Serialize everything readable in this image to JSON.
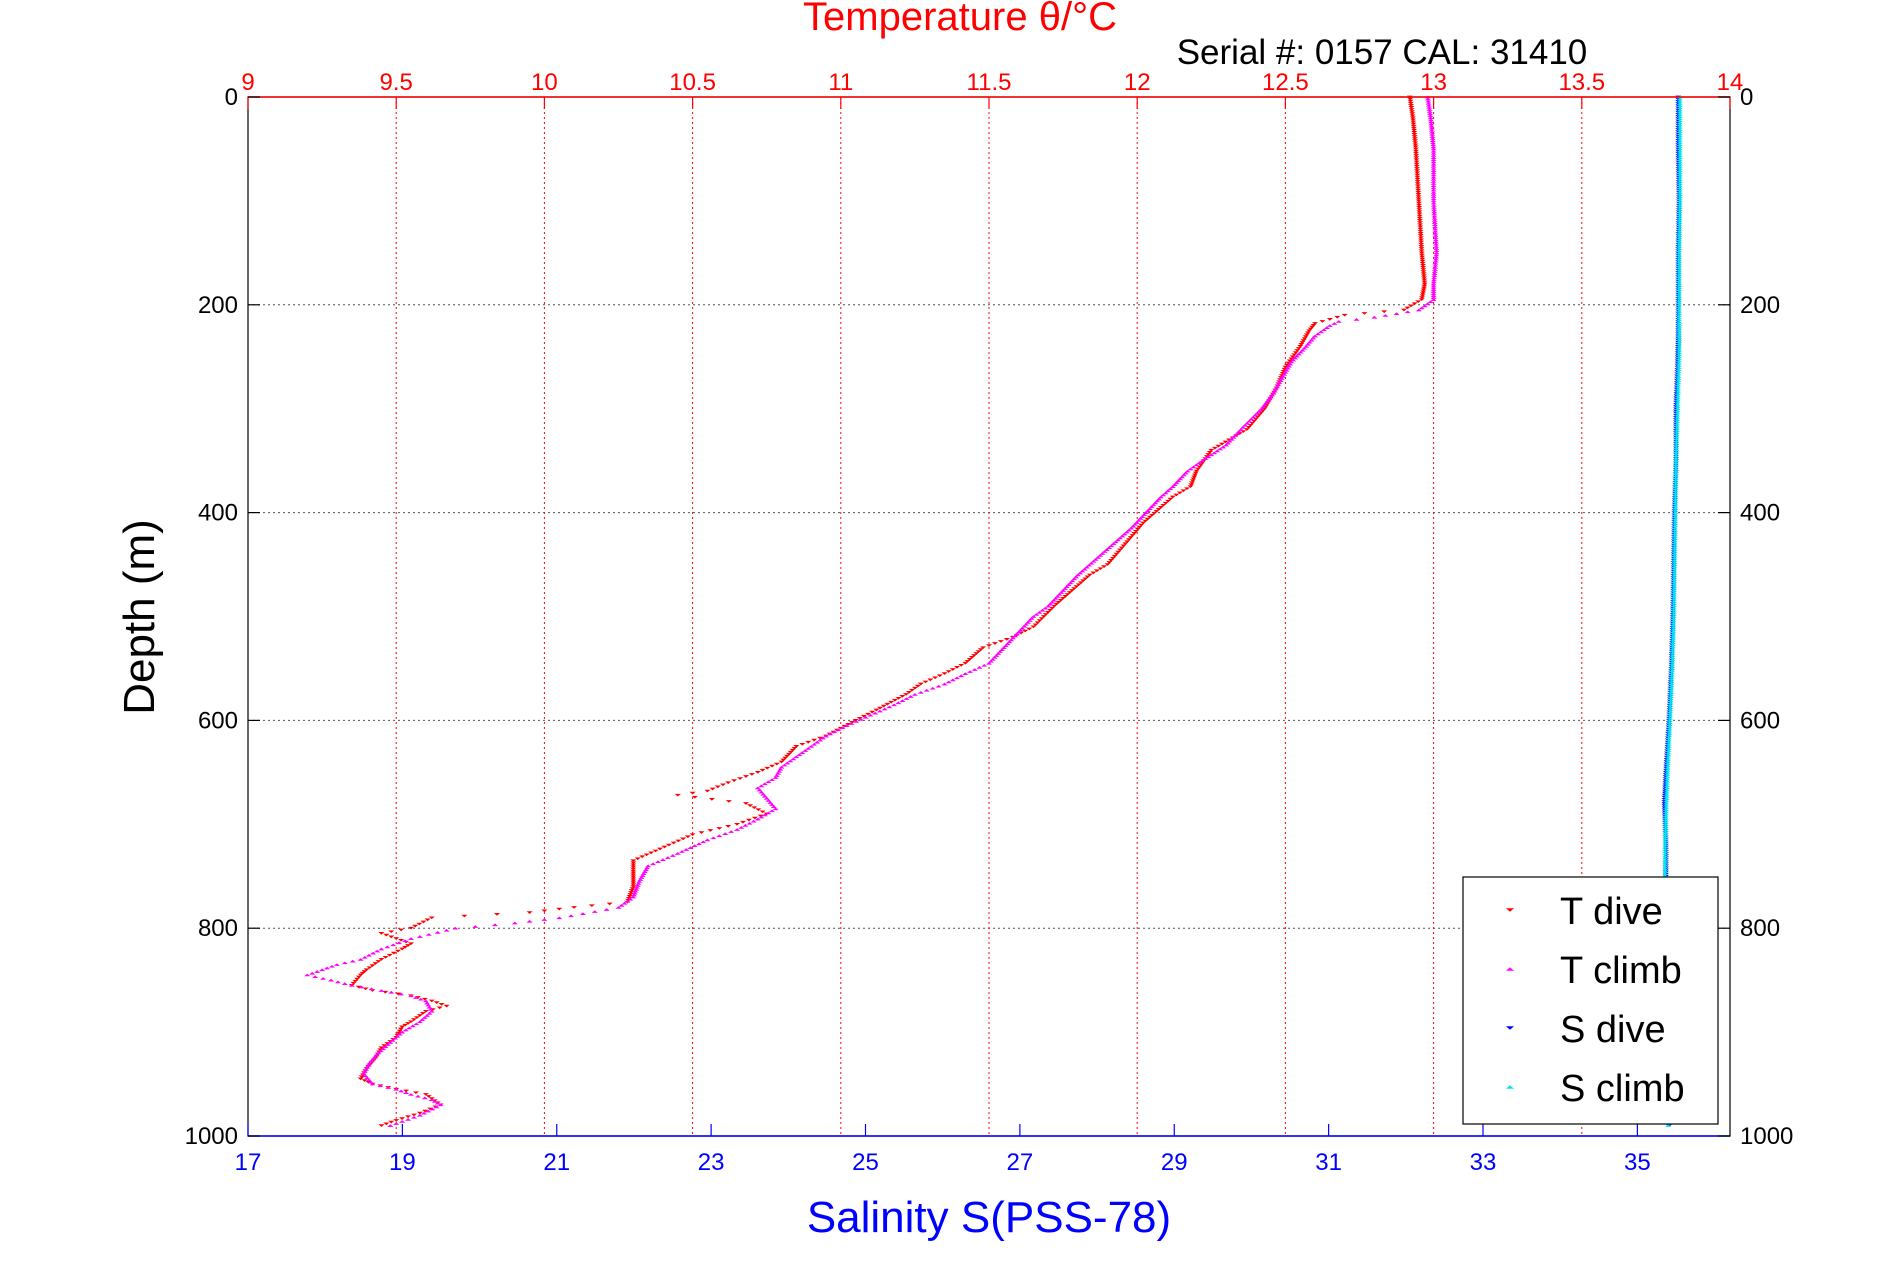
{
  "chart_data": {
    "type": "scatter",
    "title": "Temperature θ/°C",
    "subtitle": "Serial #: 0157  CAL: 31410",
    "xlabel": "Salinity S(PSS-78)",
    "ylabel": "Depth (m)",
    "x_top": {
      "label": "Temperature θ/°C",
      "lim": [
        9,
        14
      ],
      "ticks": [
        9,
        9.5,
        10,
        10.5,
        11,
        11.5,
        12,
        12.5,
        13,
        13.5,
        14
      ],
      "color": "#ff0000"
    },
    "x_bottom": {
      "label": "Salinity S(PSS-78)",
      "lim": [
        17,
        36.2
      ],
      "ticks": [
        17,
        19,
        21,
        23,
        25,
        27,
        29,
        31,
        33,
        35
      ],
      "color": "#0000ff"
    },
    "ylim": [
      0,
      1000
    ],
    "yticks": [
      0,
      200,
      400,
      600,
      800,
      1000
    ],
    "y_reversed": true,
    "grid": true,
    "legend_position": "bottom-right",
    "colors": {
      "t_dive": "#ff0000",
      "t_climb": "#ff00ff",
      "s_dive": "#0000ff",
      "s_climb": "#00e5ee"
    },
    "series": [
      {
        "name": "T dive",
        "axis": "temperature",
        "color": "#ff0000",
        "marker": "triangle-down",
        "points": [
          [
            12.92,
            0
          ],
          [
            12.93,
            20
          ],
          [
            12.94,
            50
          ],
          [
            12.95,
            100
          ],
          [
            12.96,
            150
          ],
          [
            12.97,
            180
          ],
          [
            12.96,
            195
          ],
          [
            12.9,
            205
          ],
          [
            12.7,
            210
          ],
          [
            12.6,
            218
          ],
          [
            12.58,
            225
          ],
          [
            12.55,
            240
          ],
          [
            12.5,
            260
          ],
          [
            12.47,
            280
          ],
          [
            12.43,
            300
          ],
          [
            12.37,
            320
          ],
          [
            12.25,
            340
          ],
          [
            12.2,
            360
          ],
          [
            12.18,
            375
          ],
          [
            12.12,
            385
          ],
          [
            12.08,
            395
          ],
          [
            12.02,
            410
          ],
          [
            11.96,
            430
          ],
          [
            11.9,
            450
          ],
          [
            11.84,
            460
          ],
          [
            11.78,
            475
          ],
          [
            11.72,
            490
          ],
          [
            11.65,
            510
          ],
          [
            11.58,
            520
          ],
          [
            11.48,
            530
          ],
          [
            11.42,
            545
          ],
          [
            11.35,
            555
          ],
          [
            11.27,
            565
          ],
          [
            11.22,
            575
          ],
          [
            11.12,
            590
          ],
          [
            11.05,
            600
          ],
          [
            10.95,
            615
          ],
          [
            10.85,
            625
          ],
          [
            10.8,
            640
          ],
          [
            10.72,
            650
          ],
          [
            10.62,
            660
          ],
          [
            10.55,
            668
          ],
          [
            10.45,
            672
          ],
          [
            10.68,
            680
          ],
          [
            10.75,
            690
          ],
          [
            10.65,
            700
          ],
          [
            10.5,
            710
          ],
          [
            10.42,
            720
          ],
          [
            10.3,
            735
          ],
          [
            10.3,
            745
          ],
          [
            10.3,
            760
          ],
          [
            10.28,
            775
          ],
          [
            10.1,
            780
          ],
          [
            9.95,
            785
          ],
          [
            9.62,
            790
          ],
          [
            9.55,
            800
          ],
          [
            9.45,
            805
          ],
          [
            9.5,
            810
          ],
          [
            9.55,
            815
          ],
          [
            9.52,
            820
          ],
          [
            9.45,
            830
          ],
          [
            9.4,
            840
          ],
          [
            9.38,
            845
          ],
          [
            9.35,
            855
          ],
          [
            9.42,
            860
          ],
          [
            9.55,
            865
          ],
          [
            9.62,
            870
          ],
          [
            9.67,
            875
          ],
          [
            9.6,
            880
          ],
          [
            9.55,
            890
          ],
          [
            9.52,
            895
          ],
          [
            9.5,
            905
          ],
          [
            9.45,
            915
          ],
          [
            9.43,
            925
          ],
          [
            9.4,
            935
          ],
          [
            9.38,
            945
          ],
          [
            9.42,
            950
          ],
          [
            9.5,
            955
          ],
          [
            9.6,
            960
          ],
          [
            9.65,
            970
          ],
          [
            9.58,
            978
          ],
          [
            9.5,
            985
          ],
          [
            9.45,
            990
          ]
        ]
      },
      {
        "name": "T climb",
        "axis": "temperature",
        "color": "#ff00ff",
        "marker": "triangle-up",
        "points": [
          [
            12.98,
            0
          ],
          [
            12.99,
            20
          ],
          [
            13.0,
            50
          ],
          [
            13.0,
            100
          ],
          [
            13.01,
            150
          ],
          [
            13.0,
            180
          ],
          [
            13.0,
            195
          ],
          [
            12.95,
            205
          ],
          [
            12.8,
            212
          ],
          [
            12.68,
            216
          ],
          [
            12.65,
            220
          ],
          [
            12.6,
            230
          ],
          [
            12.57,
            240
          ],
          [
            12.52,
            255
          ],
          [
            12.5,
            265
          ],
          [
            12.46,
            285
          ],
          [
            12.42,
            300
          ],
          [
            12.35,
            320
          ],
          [
            12.3,
            335
          ],
          [
            12.22,
            350
          ],
          [
            12.17,
            360
          ],
          [
            12.12,
            375
          ],
          [
            12.08,
            385
          ],
          [
            12.03,
            400
          ],
          [
            11.98,
            415
          ],
          [
            11.92,
            430
          ],
          [
            11.86,
            445
          ],
          [
            11.8,
            460
          ],
          [
            11.75,
            475
          ],
          [
            11.7,
            490
          ],
          [
            11.65,
            500
          ],
          [
            11.6,
            515
          ],
          [
            11.55,
            530
          ],
          [
            11.5,
            545
          ],
          [
            11.42,
            555
          ],
          [
            11.35,
            565
          ],
          [
            11.25,
            575
          ],
          [
            11.18,
            585
          ],
          [
            11.1,
            595
          ],
          [
            11.02,
            605
          ],
          [
            10.95,
            615
          ],
          [
            10.9,
            625
          ],
          [
            10.85,
            635
          ],
          [
            10.8,
            645
          ],
          [
            10.78,
            655
          ],
          [
            10.72,
            665
          ],
          [
            10.75,
            675
          ],
          [
            10.78,
            685
          ],
          [
            10.72,
            695
          ],
          [
            10.65,
            705
          ],
          [
            10.55,
            715
          ],
          [
            10.45,
            728
          ],
          [
            10.35,
            740
          ],
          [
            10.32,
            755
          ],
          [
            10.3,
            770
          ],
          [
            10.25,
            780
          ],
          [
            10.05,
            790
          ],
          [
            9.9,
            795
          ],
          [
            9.7,
            800
          ],
          [
            9.55,
            810
          ],
          [
            9.45,
            820
          ],
          [
            9.38,
            830
          ],
          [
            9.3,
            835
          ],
          [
            9.25,
            840
          ],
          [
            9.2,
            845
          ],
          [
            9.28,
            850
          ],
          [
            9.35,
            855
          ],
          [
            9.45,
            860
          ],
          [
            9.55,
            865
          ],
          [
            9.6,
            870
          ],
          [
            9.62,
            880
          ],
          [
            9.58,
            890
          ],
          [
            9.52,
            900
          ],
          [
            9.48,
            910
          ],
          [
            9.44,
            920
          ],
          [
            9.41,
            930
          ],
          [
            9.39,
            940
          ],
          [
            9.42,
            950
          ],
          [
            9.5,
            955
          ],
          [
            9.55,
            960
          ],
          [
            9.62,
            965
          ],
          [
            9.65,
            970
          ],
          [
            9.58,
            980
          ],
          [
            9.48,
            990
          ]
        ]
      },
      {
        "name": "S dive",
        "axis": "salinity",
        "color": "#0000ff",
        "marker": "triangle-down",
        "points": [
          [
            35.53,
            0
          ],
          [
            35.53,
            50
          ],
          [
            35.54,
            100
          ],
          [
            35.53,
            150
          ],
          [
            35.53,
            200
          ],
          [
            35.53,
            230
          ],
          [
            35.52,
            260
          ],
          [
            35.5,
            300
          ],
          [
            35.5,
            350
          ],
          [
            35.48,
            400
          ],
          [
            35.47,
            450
          ],
          [
            35.46,
            500
          ],
          [
            35.44,
            550
          ],
          [
            35.41,
            600
          ],
          [
            35.37,
            650
          ],
          [
            35.35,
            680
          ],
          [
            35.36,
            700
          ],
          [
            35.37,
            720
          ],
          [
            35.37,
            750
          ],
          [
            35.37,
            800
          ],
          [
            35.38,
            850
          ],
          [
            35.38,
            900
          ],
          [
            35.4,
            950
          ],
          [
            35.41,
            990
          ]
        ]
      },
      {
        "name": "S climb",
        "axis": "salinity",
        "color": "#00e5ee",
        "marker": "triangle-up",
        "points": [
          [
            35.55,
            0
          ],
          [
            35.55,
            50
          ],
          [
            35.55,
            100
          ],
          [
            35.54,
            150
          ],
          [
            35.54,
            200
          ],
          [
            35.54,
            250
          ],
          [
            35.52,
            300
          ],
          [
            35.5,
            350
          ],
          [
            35.49,
            400
          ],
          [
            35.48,
            450
          ],
          [
            35.47,
            500
          ],
          [
            35.45,
            550
          ],
          [
            35.42,
            600
          ],
          [
            35.39,
            650
          ],
          [
            35.37,
            690
          ],
          [
            35.36,
            720
          ],
          [
            35.36,
            760
          ],
          [
            35.37,
            800
          ],
          [
            35.37,
            850
          ],
          [
            35.38,
            900
          ],
          [
            35.39,
            950
          ],
          [
            35.4,
            990
          ]
        ]
      }
    ]
  },
  "legend": {
    "items": [
      {
        "label": "T dive",
        "color": "#ff0000",
        "marker": "triangle-down"
      },
      {
        "label": "T climb",
        "color": "#ff00ff",
        "marker": "triangle-up"
      },
      {
        "label": "S dive",
        "color": "#0000ff",
        "marker": "triangle-down"
      },
      {
        "label": "S climb",
        "color": "#00e5ee",
        "marker": "triangle-up"
      }
    ]
  }
}
